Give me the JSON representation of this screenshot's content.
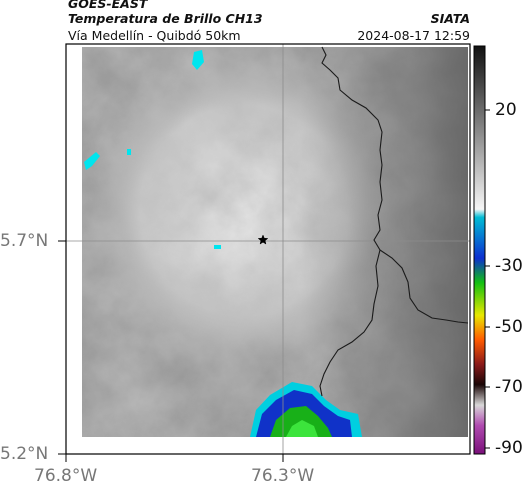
{
  "header": {
    "satellite": "GOES-EAST",
    "product": "Temperatura de Brillo CH13",
    "route": "Vía Medellín - Quibdó 50km",
    "agency": "SIATA",
    "datetime": "2024-08-17 12:59"
  },
  "map": {
    "lat_ticks": [
      {
        "value": 5.7,
        "label": "5.7°N"
      },
      {
        "value": 5.2,
        "label": "5.2°N"
      }
    ],
    "lon_ticks": [
      {
        "value": -76.8,
        "label": "76.8°W"
      },
      {
        "value": -76.3,
        "label": "76.3°W"
      }
    ],
    "marker": "star-marker",
    "colors": {
      "cloud_cold": "#f2f2f2",
      "cloud_warm": "#8a8a8a",
      "cyan": "#00e5ee",
      "blue": "#1032c8",
      "green": "#20d820",
      "coastline": "#1a1a1a"
    }
  },
  "colorbar": {
    "ticks": [
      "20",
      "-30",
      "-50",
      "-70",
      "-90"
    ],
    "stops": [
      "#111111",
      "#ffffff",
      "#00bcd4",
      "#0d2fd0",
      "#12c012",
      "#e8e800",
      "#ff5a00",
      "#8b1a1a",
      "#2a0a0a",
      "#cfcfcf",
      "#8a1a8a"
    ]
  }
}
